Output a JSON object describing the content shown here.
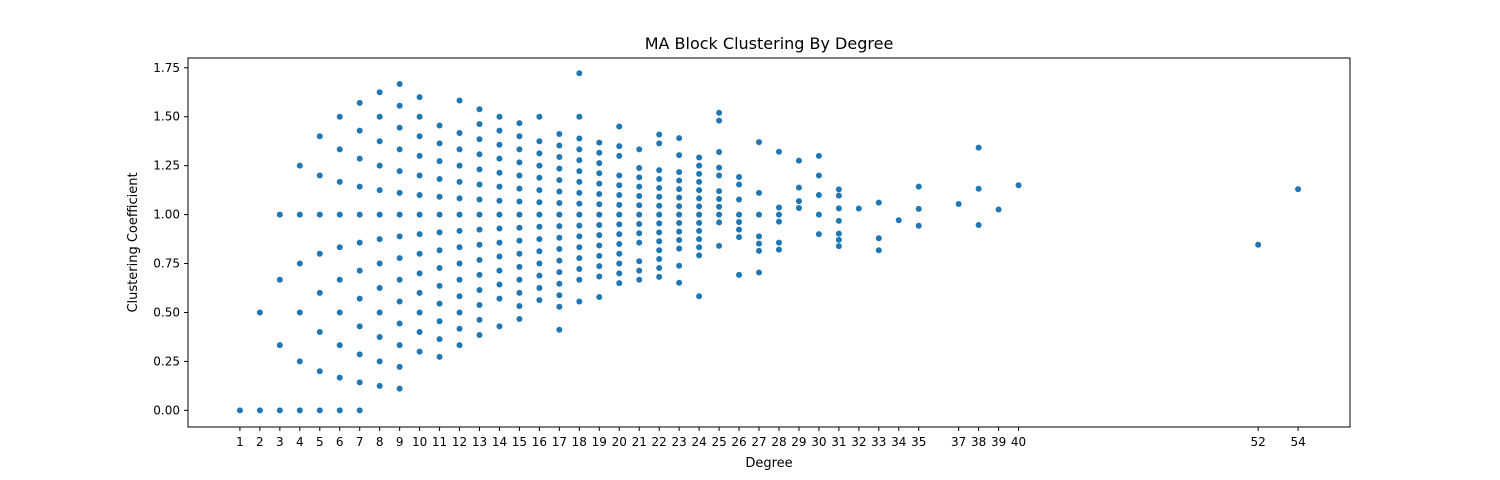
{
  "chart_data": {
    "type": "scatter",
    "title": "MA Block Clustering By Degree",
    "xlabel": "Degree",
    "ylabel": "Clustering Coefficient",
    "xlim": [
      -1.6,
      56.6
    ],
    "ylim": [
      -0.085,
      1.8
    ],
    "x_ticks": [
      1,
      2,
      3,
      4,
      5,
      6,
      7,
      8,
      9,
      10,
      11,
      12,
      13,
      14,
      15,
      16,
      17,
      18,
      19,
      20,
      21,
      22,
      23,
      24,
      25,
      26,
      27,
      28,
      29,
      30,
      31,
      32,
      33,
      34,
      35,
      37,
      38,
      39,
      40,
      52,
      54
    ],
    "y_ticks": [
      0.0,
      0.25,
      0.5,
      0.75,
      1.0,
      1.25,
      1.5,
      1.75
    ],
    "y_tick_labels": [
      "0.00",
      "0.25",
      "0.50",
      "0.75",
      "1.00",
      "1.25",
      "1.50",
      "1.75"
    ],
    "grid": false,
    "marker_color": "#1f77b4",
    "points": {
      "1": [
        0
      ],
      "2": [
        0,
        0.5
      ],
      "3": [
        0,
        0.333,
        0.667,
        1.0
      ],
      "4": [
        0,
        0.25,
        0.5,
        0.75,
        1.0,
        1.25
      ],
      "5": [
        0,
        0.2,
        0.4,
        0.6,
        0.8,
        1.0,
        1.2,
        1.4
      ],
      "6": [
        0,
        0.167,
        0.333,
        0.5,
        0.667,
        0.833,
        1.0,
        1.167,
        1.333,
        1.5
      ],
      "7": [
        0,
        0.143,
        0.286,
        0.429,
        0.571,
        0.714,
        0.857,
        1.0,
        1.143,
        1.286,
        1.429,
        1.571
      ],
      "8": [
        0.125,
        0.25,
        0.375,
        0.5,
        0.625,
        0.75,
        0.875,
        1.0,
        1.125,
        1.25,
        1.375,
        1.5,
        1.625
      ],
      "9": [
        0.111,
        0.222,
        0.333,
        0.444,
        0.556,
        0.667,
        0.778,
        0.889,
        1.0,
        1.111,
        1.222,
        1.333,
        1.444,
        1.556,
        1.667
      ],
      "10": [
        0.3,
        0.4,
        0.5,
        0.6,
        0.7,
        0.8,
        0.9,
        1.0,
        1.1,
        1.2,
        1.3,
        1.4,
        1.5,
        1.6
      ],
      "11": [
        0.273,
        0.364,
        0.455,
        0.545,
        0.636,
        0.727,
        0.818,
        0.909,
        1.0,
        1.091,
        1.182,
        1.273,
        1.364,
        1.455
      ],
      "12": [
        0.333,
        0.417,
        0.5,
        0.583,
        0.667,
        0.75,
        0.833,
        0.917,
        1.0,
        1.083,
        1.167,
        1.25,
        1.333,
        1.417,
        1.583
      ],
      "13": [
        0.385,
        0.462,
        0.538,
        0.615,
        0.692,
        0.769,
        0.846,
        0.923,
        1.0,
        1.077,
        1.154,
        1.231,
        1.308,
        1.385,
        1.462,
        1.538
      ],
      "14": [
        0.429,
        0.571,
        0.643,
        0.714,
        0.786,
        0.857,
        0.929,
        1.0,
        1.071,
        1.143,
        1.214,
        1.286,
        1.357,
        1.429,
        1.5
      ],
      "15": [
        0.467,
        0.533,
        0.6,
        0.667,
        0.733,
        0.8,
        0.867,
        0.933,
        1.0,
        1.067,
        1.133,
        1.2,
        1.267,
        1.333,
        1.4,
        1.467
      ],
      "16": [
        0.563,
        0.625,
        0.688,
        0.75,
        0.813,
        0.875,
        0.938,
        1.0,
        1.063,
        1.125,
        1.188,
        1.25,
        1.313,
        1.375,
        1.5
      ],
      "17": [
        0.412,
        0.529,
        0.588,
        0.647,
        0.706,
        0.765,
        0.824,
        0.882,
        0.941,
        1.0,
        1.059,
        1.118,
        1.176,
        1.235,
        1.294,
        1.353,
        1.412
      ],
      "18": [
        0.556,
        0.667,
        0.722,
        0.778,
        0.833,
        0.889,
        0.944,
        1.0,
        1.056,
        1.111,
        1.167,
        1.222,
        1.278,
        1.333,
        1.389,
        1.5,
        1.722
      ],
      "19": [
        0.579,
        0.684,
        0.737,
        0.789,
        0.842,
        0.895,
        0.947,
        1.0,
        1.053,
        1.105,
        1.158,
        1.211,
        1.263,
        1.316,
        1.368
      ],
      "20": [
        0.65,
        0.7,
        0.75,
        0.8,
        0.85,
        0.9,
        0.95,
        1.0,
        1.05,
        1.1,
        1.15,
        1.2,
        1.3,
        1.35,
        1.45
      ],
      "21": [
        0.667,
        0.714,
        0.762,
        0.857,
        0.905,
        0.952,
        1.0,
        1.048,
        1.095,
        1.143,
        1.19,
        1.238,
        1.333
      ],
      "22": [
        0.682,
        0.727,
        0.773,
        0.818,
        0.864,
        0.909,
        0.955,
        1.0,
        1.045,
        1.091,
        1.136,
        1.182,
        1.227,
        1.364,
        1.409
      ],
      "23": [
        0.652,
        0.739,
        0.826,
        0.87,
        0.913,
        0.957,
        1.0,
        1.043,
        1.087,
        1.13,
        1.174,
        1.217,
        1.304,
        1.391
      ],
      "24": [
        0.583,
        0.792,
        0.833,
        0.875,
        0.917,
        0.958,
        1.0,
        1.042,
        1.083,
        1.125,
        1.167,
        1.208,
        1.25,
        1.292
      ],
      "25": [
        0.84,
        0.96,
        1.0,
        1.04,
        1.08,
        1.12,
        1.2,
        1.24,
        1.32,
        1.48,
        1.52
      ],
      "26": [
        0.692,
        0.885,
        0.923,
        0.962,
        1.0,
        1.077,
        1.154,
        1.192
      ],
      "27": [
        0.704,
        0.815,
        0.852,
        0.889,
        1.0,
        1.111,
        1.37
      ],
      "28": [
        0.821,
        0.857,
        0.964,
        1.0,
        1.036,
        1.321
      ],
      "29": [
        1.034,
        1.069,
        1.138,
        1.276
      ],
      "30": [
        0.9,
        1.0,
        1.1,
        1.2,
        1.3
      ],
      "31": [
        0.839,
        0.871,
        0.903,
        0.968,
        1.032,
        1.097,
        1.129
      ],
      "32": [
        1.031
      ],
      "33": [
        0.818,
        0.879,
        1.061
      ],
      "34": [
        0.971
      ],
      "35": [
        0.943,
        1.029,
        1.143
      ],
      "37": [
        1.054
      ],
      "38": [
        0.947,
        1.132,
        1.342
      ],
      "39": [
        1.026
      ],
      "40": [
        1.15
      ],
      "52": [
        0.846
      ],
      "54": [
        1.13
      ]
    }
  }
}
